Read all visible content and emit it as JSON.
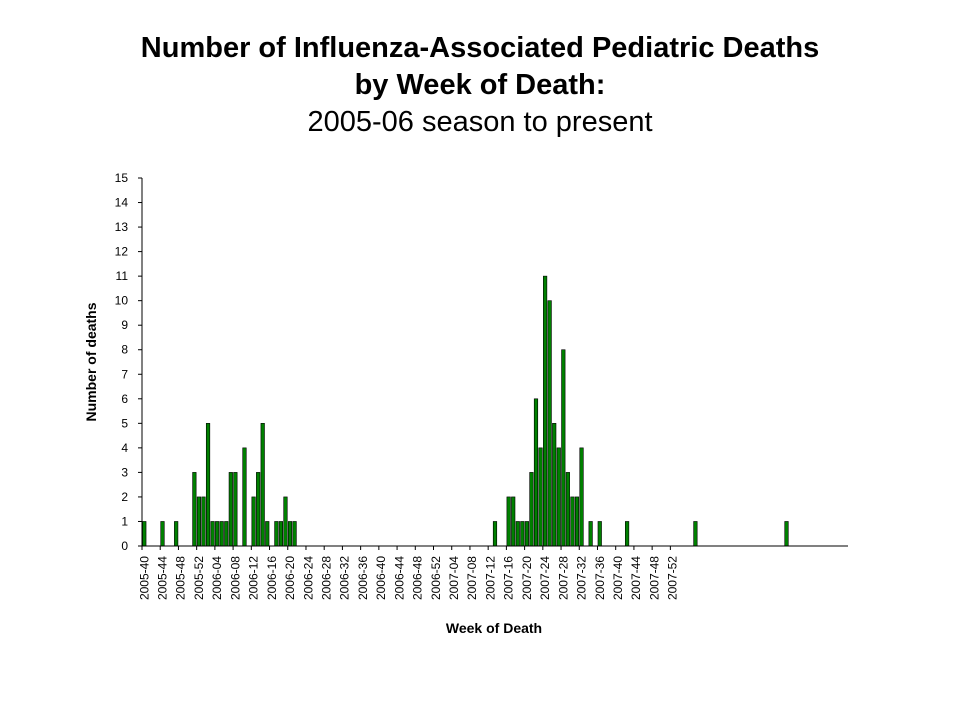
{
  "chart_data": {
    "type": "bar",
    "title_line1": "Number of Influenza-Associated Pediatric Deaths",
    "title_line2": "by Week of Death:",
    "subtitle": "2005-06 season to present",
    "xlabel": "Week of Death",
    "ylabel": "Number of deaths",
    "ylim": [
      0,
      15
    ],
    "yticks": [
      0,
      1,
      2,
      3,
      4,
      5,
      6,
      7,
      8,
      9,
      10,
      11,
      12,
      13,
      14,
      15
    ],
    "bar_color": "#008000",
    "categories_start": "2005-40",
    "xtick_labels": [
      "2005-40",
      "2005-44",
      "2005-48",
      "2005-52",
      "2006-04",
      "2006-08",
      "2006-12",
      "2006-16",
      "2006-20",
      "2006-24",
      "2006-28",
      "2006-32",
      "2006-36",
      "2006-40",
      "2006-44",
      "2006-48",
      "2006-52",
      "2007-04",
      "2007-08",
      "2007-12",
      "2007-16",
      "2007-20",
      "2007-24",
      "2007-28",
      "2007-32",
      "2007-36",
      "2007-40",
      "2007-44",
      "2007-48",
      "2007-52"
    ],
    "values": [
      1,
      0,
      0,
      0,
      1,
      0,
      0,
      1,
      0,
      0,
      0,
      3,
      2,
      2,
      5,
      1,
      1,
      1,
      1,
      3,
      3,
      0,
      4,
      0,
      2,
      3,
      5,
      1,
      0,
      1,
      1,
      2,
      1,
      1,
      0,
      0,
      0,
      0,
      0,
      0,
      0,
      0,
      0,
      0,
      0,
      0,
      0,
      0,
      0,
      0,
      0,
      0,
      0,
      0,
      0,
      0,
      0,
      0,
      0,
      0,
      0,
      0,
      0,
      0,
      0,
      0,
      0,
      0,
      0,
      0,
      0,
      0,
      0,
      0,
      0,
      0,
      0,
      1,
      0,
      0,
      2,
      2,
      1,
      1,
      1,
      3,
      6,
      4,
      11,
      10,
      5,
      4,
      8,
      3,
      2,
      2,
      4,
      0,
      1,
      0,
      1,
      0,
      0,
      0,
      0,
      0,
      1,
      0,
      0,
      0,
      0,
      0,
      0,
      0,
      0,
      0,
      0,
      0,
      0,
      0,
      0,
      1,
      0,
      0,
      0,
      0,
      0,
      0,
      0,
      0,
      0,
      0,
      0,
      0,
      0,
      0,
      0,
      0,
      0,
      0,
      0,
      1,
      0,
      0,
      0,
      0,
      0,
      0,
      0,
      0,
      0,
      0,
      0,
      0,
      0
    ]
  }
}
